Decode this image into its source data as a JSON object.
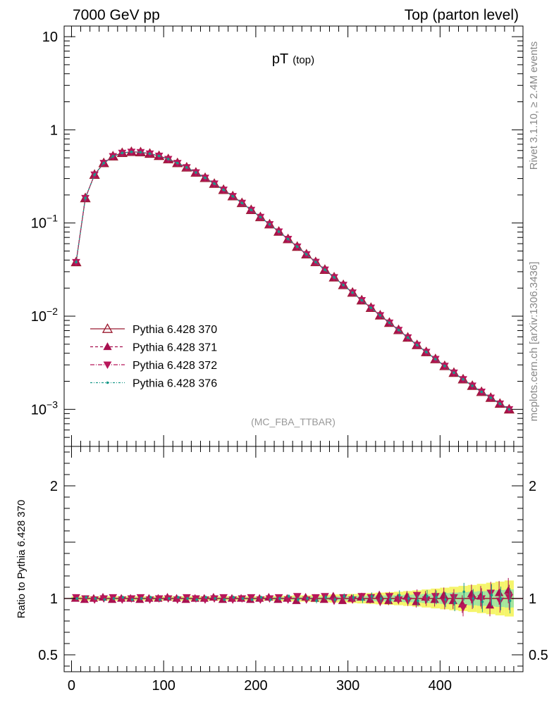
{
  "header": {
    "left": "7000 GeV pp",
    "right": "Top (parton level)",
    "title_main": "pT",
    "title_sub": "(top)",
    "analysis": "(MC_FBA_TTBAR)",
    "side_rivet": "Rivet 3.1.10, ≥ 2.4M events",
    "side_mcplots": "mcplots.cern.ch [arXiv:1306.3436]"
  },
  "colors": {
    "s370": "#9b1b30",
    "s371": "#a8104f",
    "s372": "#b8175a",
    "s376": "#1a9a8a",
    "band_green": "#a3e69e",
    "band_yellow": "#f5f56b"
  },
  "chart_data": [
    {
      "type": "line",
      "title": "pT (top)",
      "scale": "log",
      "xlim": [
        -8,
        490
      ],
      "ylim": [
        0.0004,
        13
      ],
      "x_ticks": [
        0,
        100,
        200,
        300,
        400
      ],
      "y_ticks": [
        {
          "value": 10,
          "label": "10"
        },
        {
          "value": 1,
          "label": "1"
        },
        {
          "value": 0.1,
          "label": "10",
          "exp": "−1"
        },
        {
          "value": 0.01,
          "label": "10",
          "exp": "−2"
        },
        {
          "value": 0.001,
          "label": "10",
          "exp": "−3"
        }
      ],
      "x": [
        5,
        15,
        25,
        35,
        45,
        55,
        65,
        75,
        85,
        95,
        105,
        115,
        125,
        135,
        145,
        155,
        165,
        175,
        185,
        195,
        205,
        215,
        225,
        235,
        245,
        255,
        265,
        275,
        285,
        295,
        305,
        315,
        325,
        335,
        345,
        355,
        365,
        375,
        385,
        395,
        405,
        415,
        425,
        435,
        445,
        455,
        465,
        475
      ],
      "series": [
        {
          "name": "Pythia 6.428 370",
          "marker": "triangle-open",
          "dash": "solid",
          "values": [
            0.038,
            0.185,
            0.33,
            0.44,
            0.52,
            0.565,
            0.58,
            0.575,
            0.555,
            0.525,
            0.485,
            0.44,
            0.395,
            0.348,
            0.305,
            0.264,
            0.227,
            0.194,
            0.164,
            0.138,
            0.1158,
            0.0968,
            0.0808,
            0.0672,
            0.0557,
            0.0461,
            0.0381,
            0.0315,
            0.0261,
            0.0216,
            0.0179,
            0.0148,
            0.0123,
            0.0102,
            0.0085,
            0.0071,
            0.0059,
            0.0049,
            0.00412,
            0.00346,
            0.00292,
            0.00247,
            0.0021,
            0.00179,
            0.00154,
            0.00133,
            0.00115,
            0.001
          ]
        },
        {
          "name": "Pythia 6.428 371",
          "marker": "triangle-up",
          "dash": "4,3",
          "values": [
            0.038,
            0.185,
            0.33,
            0.44,
            0.52,
            0.565,
            0.58,
            0.575,
            0.555,
            0.525,
            0.485,
            0.44,
            0.395,
            0.348,
            0.305,
            0.264,
            0.227,
            0.194,
            0.164,
            0.138,
            0.1158,
            0.0968,
            0.0808,
            0.0672,
            0.0557,
            0.0461,
            0.0381,
            0.0315,
            0.0261,
            0.0216,
            0.0179,
            0.0148,
            0.0123,
            0.0102,
            0.0085,
            0.0071,
            0.0059,
            0.0049,
            0.00412,
            0.00346,
            0.00292,
            0.00247,
            0.0021,
            0.00179,
            0.00154,
            0.00133,
            0.00115,
            0.001
          ]
        },
        {
          "name": "Pythia 6.428 372",
          "marker": "triangle-down",
          "dash": "6,2,1,2",
          "values": [
            0.038,
            0.185,
            0.33,
            0.44,
            0.52,
            0.565,
            0.58,
            0.575,
            0.555,
            0.525,
            0.485,
            0.44,
            0.395,
            0.348,
            0.305,
            0.264,
            0.227,
            0.194,
            0.164,
            0.138,
            0.1158,
            0.0968,
            0.0808,
            0.0672,
            0.0557,
            0.0461,
            0.0381,
            0.0315,
            0.0261,
            0.0216,
            0.0179,
            0.0148,
            0.0123,
            0.0102,
            0.0085,
            0.0071,
            0.0059,
            0.0049,
            0.00412,
            0.00346,
            0.00292,
            0.00247,
            0.0021,
            0.00179,
            0.00154,
            0.00133,
            0.00115,
            0.001
          ]
        },
        {
          "name": "Pythia 6.428 376",
          "marker": "dot",
          "dash": "3,2,1,2",
          "values": [
            0.038,
            0.185,
            0.33,
            0.44,
            0.52,
            0.565,
            0.58,
            0.575,
            0.555,
            0.525,
            0.485,
            0.44,
            0.395,
            0.348,
            0.305,
            0.264,
            0.227,
            0.194,
            0.164,
            0.138,
            0.1158,
            0.0968,
            0.0808,
            0.0672,
            0.0557,
            0.0461,
            0.0381,
            0.0315,
            0.0261,
            0.0216,
            0.0179,
            0.0148,
            0.0123,
            0.0102,
            0.0085,
            0.0071,
            0.0059,
            0.0049,
            0.00412,
            0.00346,
            0.00292,
            0.00247,
            0.0021,
            0.00179,
            0.00154,
            0.00133,
            0.00115,
            0.001
          ]
        }
      ]
    },
    {
      "type": "scatter",
      "ylabel": "Ratio to Pythia 6.428 370",
      "xlim": [
        -8,
        490
      ],
      "ylim": [
        0.35,
        2.35
      ],
      "x_ticks": [
        0,
        100,
        200,
        300,
        400
      ],
      "y_ticks": [
        {
          "value": 0.5,
          "label": "0.5"
        },
        {
          "value": 1,
          "label": "1"
        },
        {
          "value": 2,
          "label": "2"
        }
      ],
      "x": [
        5,
        15,
        25,
        35,
        45,
        55,
        65,
        75,
        85,
        95,
        105,
        115,
        125,
        135,
        145,
        155,
        165,
        175,
        185,
        195,
        205,
        215,
        225,
        235,
        245,
        255,
        265,
        275,
        285,
        295,
        305,
        315,
        325,
        335,
        345,
        355,
        365,
        375,
        385,
        395,
        405,
        415,
        425,
        435,
        445,
        455,
        465,
        475
      ],
      "band_half_width": [
        0.01,
        0.01,
        0.01,
        0.01,
        0.01,
        0.01,
        0.01,
        0.01,
        0.01,
        0.01,
        0.01,
        0.01,
        0.01,
        0.01,
        0.01,
        0.01,
        0.01,
        0.01,
        0.01,
        0.01,
        0.01,
        0.01,
        0.012,
        0.012,
        0.014,
        0.014,
        0.016,
        0.016,
        0.018,
        0.018,
        0.02,
        0.022,
        0.024,
        0.026,
        0.028,
        0.03,
        0.033,
        0.036,
        0.04,
        0.044,
        0.048,
        0.052,
        0.056,
        0.06,
        0.065,
        0.07,
        0.075,
        0.08
      ],
      "series": [
        {
          "name": "Pythia 6.428 371",
          "marker": "triangle-up",
          "values": [
            1.0,
            0.99,
            1.0,
            1.01,
            0.99,
            1.0,
            1.0,
            0.99,
            1.0,
            1.0,
            1.01,
            1.0,
            0.99,
            1.0,
            1.0,
            1.01,
            0.99,
            1.0,
            1.0,
            0.99,
            1.0,
            1.01,
            0.99,
            1.0,
            0.98,
            1.01,
            1.0,
            0.99,
            1.02,
            0.98,
            1.0,
            1.01,
            0.99,
            1.03,
            0.98,
            1.0,
            1.02,
            0.97,
            1.01,
            0.99,
            1.03,
            0.98,
            0.95,
            1.04,
            1.02,
            0.94,
            1.05,
            1.07
          ]
        },
        {
          "name": "Pythia 6.428 372",
          "marker": "triangle-down",
          "values": [
            1.01,
            1.0,
            0.99,
            1.0,
            1.01,
            0.99,
            1.0,
            1.01,
            0.99,
            1.0,
            1.0,
            0.99,
            1.01,
            1.0,
            0.99,
            1.0,
            1.01,
            0.99,
            1.0,
            1.01,
            0.99,
            1.0,
            1.01,
            0.99,
            1.02,
            0.99,
            1.01,
            1.02,
            0.98,
            1.01,
            0.99,
            1.02,
            1.01,
            0.97,
            1.02,
            0.99,
            0.98,
            1.03,
            0.99,
            1.02,
            0.97,
            1.01,
            0.92,
            0.99,
            1.0,
            1.05,
            0.98,
            1.01
          ]
        },
        {
          "name": "Pythia 6.428 376",
          "marker": "dot",
          "values": [
            1.0,
            1.01,
            1.0,
            0.99,
            1.0,
            1.01,
            0.99,
            1.0,
            1.01,
            0.99,
            1.0,
            1.01,
            1.0,
            0.99,
            1.01,
            1.0,
            0.99,
            1.01,
            1.0,
            0.99,
            1.01,
            0.99,
            1.0,
            1.02,
            0.99,
            1.0,
            0.98,
            1.01,
            0.99,
            1.02,
            1.01,
            0.99,
            1.02,
            1.0,
            0.99,
            1.03,
            1.0,
            0.98,
            1.02,
            1.01,
            0.99,
            0.96,
            1.06,
            1.0,
            0.97,
            1.03,
            1.0,
            0.98
          ]
        }
      ]
    }
  ]
}
